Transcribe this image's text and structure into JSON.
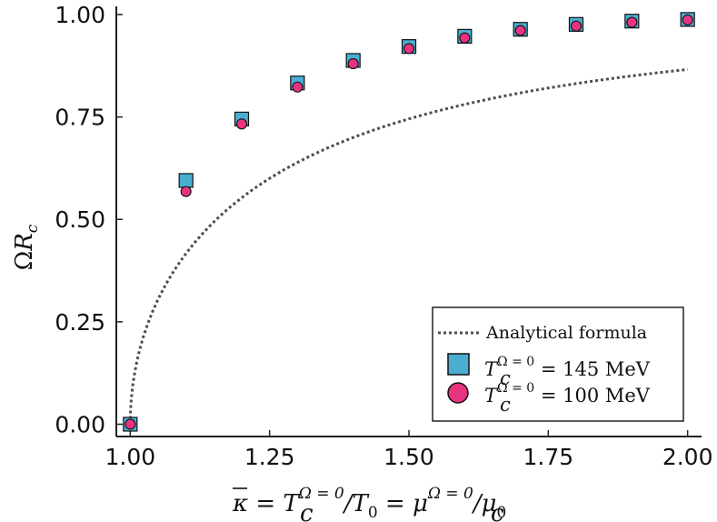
{
  "chart_data": {
    "type": "scatter",
    "title": "",
    "xlabel": "κ̄ = T_c^(Ω = 0)/T_0 = μ_c^(Ω = 0)/μ_0",
    "ylabel": "ΩR_c",
    "xlim": [
      0.975,
      2.025
    ],
    "ylim": [
      -0.03,
      1.02
    ],
    "x_ticks": [
      1.0,
      1.25,
      1.5,
      1.75,
      2.0
    ],
    "x_tick_labels": [
      "1.00",
      "1.25",
      "1.50",
      "1.75",
      "2.00"
    ],
    "y_ticks": [
      0.0,
      0.25,
      0.5,
      0.75,
      1.0
    ],
    "y_tick_labels": [
      "0.00",
      "0.25",
      "0.50",
      "0.75",
      "1.00"
    ],
    "grid": false,
    "legend_position": "bottom-right",
    "series": [
      {
        "name": "Analytical formula",
        "kind": "line",
        "style": "dotted",
        "color": "#4d4d4d",
        "formula": "sqrt(1 - 1/x^2)",
        "x_range": [
          1.0,
          2.0
        ]
      },
      {
        "name": "T_c^(Ω = 0) = 145 MeV",
        "kind": "marker",
        "marker": "square",
        "color": "#4aaed2",
        "x": [
          1.0,
          1.1,
          1.2,
          1.3,
          1.4,
          1.5,
          1.6,
          1.7,
          1.8,
          1.9,
          2.0
        ],
        "y": [
          0.0,
          0.595,
          0.745,
          0.833,
          0.888,
          0.922,
          0.947,
          0.964,
          0.976,
          0.984,
          0.988
        ]
      },
      {
        "name": "T_c^(Ω = 0) = 100 MeV",
        "kind": "marker",
        "marker": "circle",
        "color": "#e8337f",
        "x": [
          1.0,
          1.1,
          1.2,
          1.3,
          1.4,
          1.5,
          1.6,
          1.7,
          1.8,
          1.9,
          2.0
        ],
        "y": [
          0.0,
          0.568,
          0.733,
          0.823,
          0.88,
          0.917,
          0.943,
          0.961,
          0.972,
          0.981,
          0.987
        ]
      }
    ]
  },
  "axis_text": {
    "x_kappa": "κ",
    "x_eq1": " = ",
    "x_T": "T",
    "x_c": "c",
    "x_sup": "Ω = 0",
    "x_slash_T": "/T",
    "x_zero": "0",
    "x_eq2": " = ",
    "x_mu": "μ",
    "x_c2": "c",
    "x_sup2": "Ω = 0",
    "x_slash_mu": "/μ",
    "x_zero2": "0",
    "y_omega": "Ω",
    "y_R": "R",
    "y_c": "c"
  },
  "legend": {
    "line_label": "Analytical formula",
    "square_T": "T",
    "square_sup": "Ω = 0",
    "square_sub": "c",
    "square_value": " = 145 MeV",
    "circle_T": "T",
    "circle_sup": "Ω = 0",
    "circle_sub": "c",
    "circle_value": " = 100 MeV"
  }
}
